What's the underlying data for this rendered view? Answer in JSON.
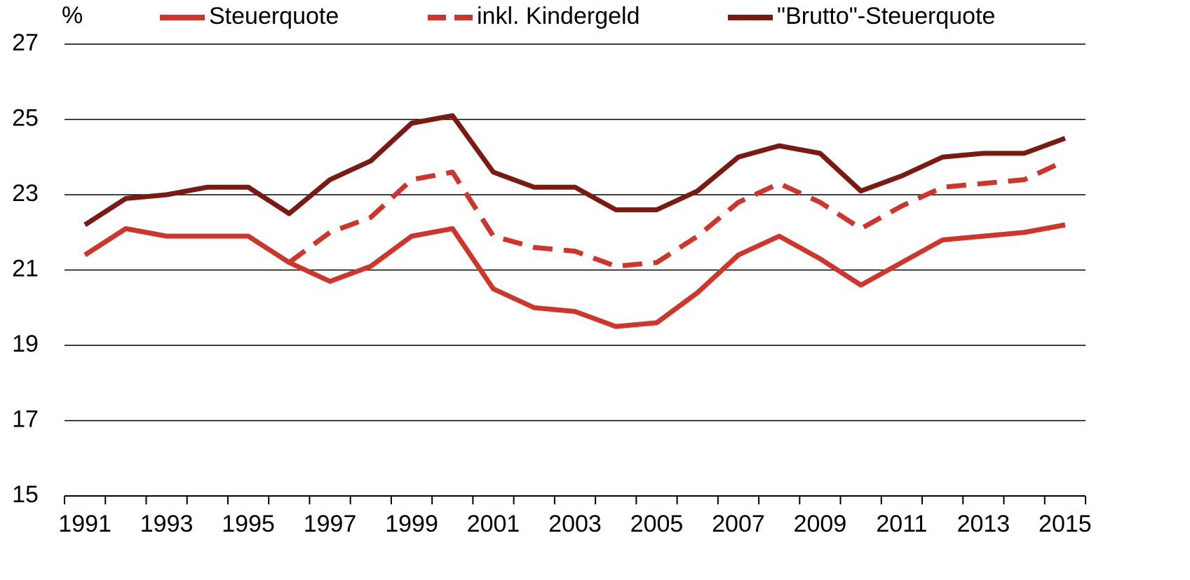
{
  "chart_data": {
    "type": "line",
    "y_label": "%",
    "categories": [
      "1991",
      null,
      "1993",
      null,
      "1995",
      null,
      "1997",
      null,
      "1999",
      null,
      "2001",
      null,
      "2003",
      null,
      "2005",
      null,
      "2007",
      null,
      "2009",
      null,
      "2011",
      null,
      "2013",
      null,
      "2015"
    ],
    "series": [
      {
        "name": "Steuerquote",
        "color": "#d0352b",
        "dash": false,
        "values": [
          21.4,
          22.1,
          21.9,
          21.9,
          21.9,
          21.2,
          20.7,
          21.1,
          21.9,
          22.1,
          20.5,
          20.0,
          19.9,
          19.5,
          19.6,
          20.4,
          21.4,
          21.9,
          21.3,
          20.6,
          21.2,
          21.8,
          21.9,
          22.0,
          22.2
        ]
      },
      {
        "name": "inkl. Kindergeld",
        "color": "#d0352b",
        "dash": true,
        "values": [
          null,
          null,
          null,
          null,
          null,
          21.2,
          22.0,
          22.4,
          23.4,
          23.6,
          21.9,
          21.6,
          21.5,
          21.1,
          21.2,
          21.9,
          22.8,
          23.3,
          22.8,
          22.1,
          22.7,
          23.2,
          23.3,
          23.4,
          23.9
        ]
      },
      {
        "name": "\"Brutto\"-Steuerquote",
        "color": "#7b1a12",
        "dash": false,
        "values": [
          22.2,
          22.9,
          23.0,
          23.2,
          23.2,
          22.5,
          23.4,
          23.9,
          24.9,
          25.1,
          23.6,
          23.2,
          23.2,
          22.6,
          22.6,
          23.1,
          24.0,
          24.3,
          24.1,
          23.1,
          23.5,
          24.0,
          24.1,
          24.1,
          24.5
        ]
      }
    ],
    "ylim": [
      15,
      27
    ],
    "yticks": [
      15,
      17,
      19,
      21,
      23,
      25,
      27
    ],
    "grid": true,
    "legend": "top"
  }
}
